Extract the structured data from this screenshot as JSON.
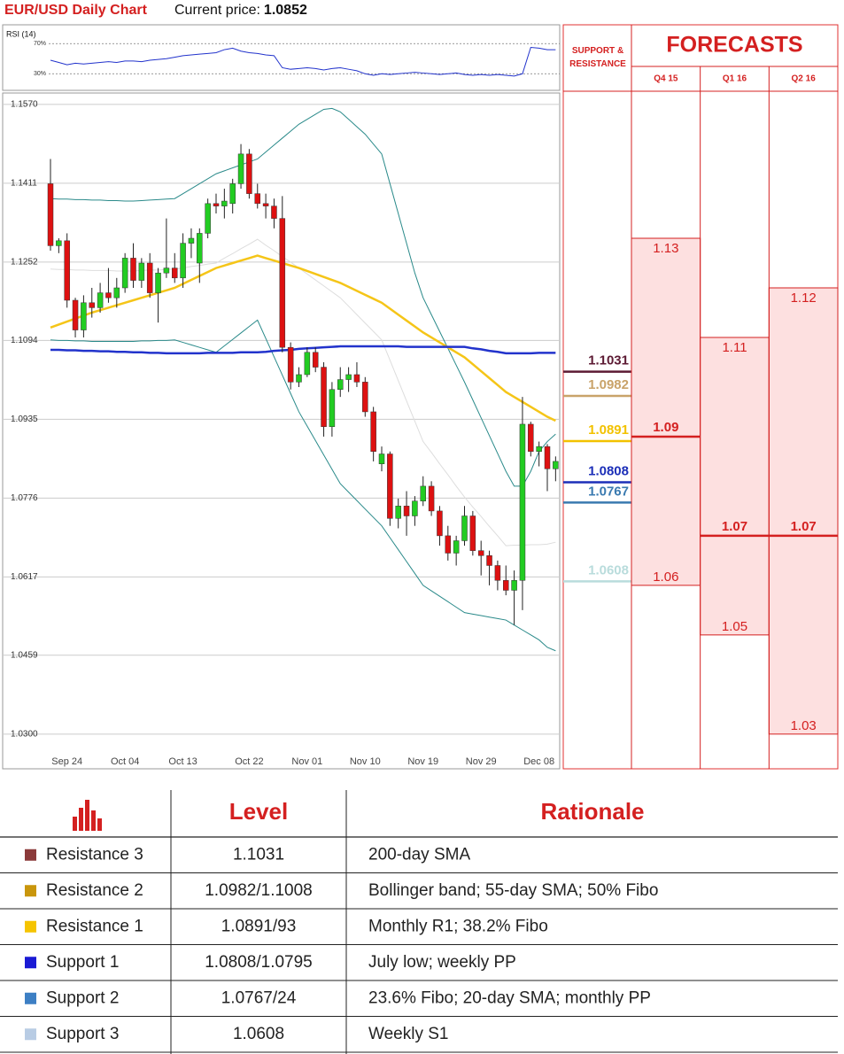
{
  "header": {
    "title": "EUR/USD Daily Chart",
    "price_label": "Current price:",
    "price": "1.0852"
  },
  "chart_data": [
    {
      "type": "line",
      "title": "RSI (14)",
      "color": "#2233cc",
      "values": [
        48,
        45,
        42,
        44,
        43,
        44,
        45,
        46,
        45,
        47,
        47,
        46,
        48,
        49,
        50,
        52,
        54,
        55,
        56,
        57,
        58,
        62,
        64,
        60,
        58,
        57,
        55,
        54,
        38,
        36,
        37,
        38,
        37,
        35,
        37,
        38,
        36,
        34,
        30,
        28,
        30,
        29,
        30,
        31,
        32,
        31,
        30,
        29,
        30,
        31,
        29,
        28,
        29,
        28,
        29,
        28,
        27,
        30,
        65,
        64,
        62,
        62
      ],
      "ylim": [
        8,
        95
      ],
      "yticks": [
        {
          "value": 70,
          "label": "70%"
        },
        {
          "value": 30,
          "label": "30%"
        }
      ]
    },
    {
      "type": "candlestick",
      "grid": true,
      "categories": [
        null,
        null,
        "Sep 24",
        null,
        null,
        null,
        null,
        null,
        null,
        "Oct 04",
        null,
        null,
        null,
        null,
        null,
        null,
        "Oct 13",
        null,
        null,
        null,
        null,
        null,
        null,
        null,
        "Oct 22",
        null,
        null,
        null,
        null,
        null,
        null,
        "Nov 01",
        null,
        null,
        null,
        null,
        null,
        null,
        "Nov 10",
        null,
        null,
        null,
        null,
        null,
        null,
        "Nov 19",
        null,
        null,
        null,
        null,
        null,
        null,
        "Nov 29",
        null,
        null,
        null,
        null,
        null,
        null,
        "Dec 08",
        null,
        null
      ],
      "open": [
        1.141,
        1.1285,
        1.1295,
        1.1175,
        1.1115,
        1.117,
        1.116,
        1.119,
        1.118,
        1.12,
        1.126,
        1.1215,
        1.125,
        1.119,
        1.123,
        1.124,
        1.122,
        1.129,
        1.125,
        1.131,
        1.137,
        1.1365,
        1.137,
        1.141,
        1.147,
        1.139,
        1.137,
        1.1365,
        1.134,
        1.108,
        1.101,
        1.1025,
        1.107,
        1.104,
        1.092,
        1.0995,
        1.1015,
        1.1025,
        1.101,
        1.095,
        1.0845,
        1.0865,
        1.0735,
        1.076,
        1.074,
        1.077,
        1.08,
        1.075,
        1.07,
        1.0665,
        1.069,
        1.074,
        1.067,
        1.066,
        1.064,
        1.061,
        1.059,
        1.061,
        1.0925,
        1.087,
        1.088,
        1.0835
      ],
      "high": [
        1.146,
        1.13,
        1.131,
        1.118,
        1.1185,
        1.12,
        1.121,
        1.124,
        1.122,
        1.127,
        1.129,
        1.126,
        1.127,
        1.124,
        1.134,
        1.127,
        1.131,
        1.132,
        1.132,
        1.138,
        1.139,
        1.14,
        1.142,
        1.149,
        1.148,
        1.141,
        1.139,
        1.138,
        1.1385,
        1.109,
        1.104,
        1.108,
        1.108,
        1.105,
        1.101,
        1.104,
        1.104,
        1.105,
        1.102,
        1.096,
        1.088,
        1.087,
        1.0775,
        1.079,
        1.078,
        1.082,
        1.081,
        1.076,
        1.072,
        1.07,
        1.076,
        1.075,
        1.069,
        1.067,
        1.065,
        1.064,
        1.063,
        1.098,
        1.093,
        1.089,
        1.0885,
        1.086
      ],
      "low": [
        1.1275,
        1.127,
        1.116,
        1.11,
        1.11,
        1.114,
        1.115,
        1.117,
        1.116,
        1.119,
        1.12,
        1.12,
        1.118,
        1.113,
        1.122,
        1.121,
        1.12,
        1.126,
        1.121,
        1.13,
        1.135,
        1.134,
        1.135,
        1.14,
        1.138,
        1.136,
        1.134,
        1.132,
        1.107,
        1.0995,
        1.1,
        1.102,
        1.103,
        1.09,
        1.09,
        1.098,
        1.099,
        1.1,
        1.094,
        1.085,
        1.083,
        1.072,
        1.0715,
        1.07,
        1.072,
        1.076,
        1.074,
        1.068,
        1.065,
        1.064,
        1.068,
        1.066,
        1.062,
        1.06,
        1.059,
        1.058,
        1.052,
        1.055,
        1.086,
        1.084,
        1.079,
        1.081
      ],
      "close": [
        1.1285,
        1.1295,
        1.1175,
        1.1115,
        1.117,
        1.116,
        1.119,
        1.118,
        1.12,
        1.126,
        1.1215,
        1.125,
        1.119,
        1.123,
        1.124,
        1.122,
        1.129,
        1.13,
        1.131,
        1.137,
        1.1365,
        1.1375,
        1.141,
        1.147,
        1.139,
        1.137,
        1.1365,
        1.134,
        1.108,
        1.101,
        1.1025,
        1.107,
        1.104,
        1.092,
        1.0995,
        1.1015,
        1.1025,
        1.101,
        1.095,
        1.087,
        1.0865,
        1.0735,
        1.076,
        1.074,
        1.077,
        1.08,
        1.075,
        1.07,
        1.0665,
        1.069,
        1.074,
        1.067,
        1.066,
        1.064,
        1.061,
        1.059,
        1.061,
        1.0925,
        1.087,
        1.088,
        1.0835,
        1.085
      ],
      "up_color": "#22cc22",
      "down_color": "#dd1111",
      "series": [
        {
          "color": "#dddddd",
          "width": 1,
          "values": [
            1.1238,
            1.1237,
            1.1237,
            1.1236,
            1.1236,
            1.1235,
            1.1235,
            1.1235,
            1.1234,
            1.1234,
            1.1234,
            1.1235,
            1.1236,
            1.1236,
            1.1237,
            1.1238,
            1.124,
            1.1243,
            1.1245,
            1.1248,
            1.125,
            1.126,
            1.1269,
            1.1279,
            1.1288,
            1.1298,
            1.1286,
            1.1275,
            1.1263,
            1.1252,
            1.124,
            1.1228,
            1.1216,
            1.1204,
            1.1192,
            1.118,
            1.1163,
            1.1146,
            1.1129,
            1.1112,
            1.1095,
            1.1054,
            1.1013,
            1.0972,
            1.0931,
            1.089,
            1.0868,
            1.0845,
            1.0823,
            1.08,
            1.0778,
            1.0758,
            1.0739,
            1.0719,
            1.07,
            1.068,
            1.0681,
            1.0681,
            1.0682,
            1.0682,
            1.0683,
            1.0687
          ]
        },
        {
          "color": "#2a8a8a",
          "width": 1,
          "values": [
            1.138,
            1.1379,
            1.1379,
            1.1378,
            1.1378,
            1.1377,
            1.1377,
            1.1376,
            1.1376,
            1.1375,
            1.1375,
            1.1376,
            1.1377,
            1.1378,
            1.1379,
            1.138,
            1.139,
            1.14,
            1.141,
            1.142,
            1.143,
            1.1436,
            1.1442,
            1.1448,
            1.1454,
            1.146,
            1.1474,
            1.1488,
            1.1502,
            1.1516,
            1.153,
            1.154,
            1.155,
            1.156,
            1.1562,
            1.1555,
            1.154,
            1.1525,
            1.151,
            1.149,
            1.147,
            1.141,
            1.135,
            1.129,
            1.123,
            1.118,
            1.1146,
            1.1112,
            1.1078,
            1.1044,
            1.101,
            1.0974,
            1.0938,
            1.0902,
            1.0866,
            1.083,
            1.08,
            1.08,
            1.083,
            1.087,
            1.089,
            1.0905
          ]
        },
        {
          "color": "#2a8a8a",
          "width": 1,
          "values": [
            1.1095,
            1.1094,
            1.1094,
            1.1093,
            1.1093,
            1.1092,
            1.1092,
            1.1092,
            1.1092,
            1.1092,
            1.1092,
            1.1093,
            1.1093,
            1.1094,
            1.1094,
            1.1095,
            1.109,
            1.1085,
            1.108,
            1.1075,
            1.107,
            1.1083,
            1.1096,
            1.1109,
            1.1122,
            1.1135,
            1.1098,
            1.1061,
            1.1024,
            1.0987,
            1.095,
            1.0921,
            1.0892,
            1.0863,
            1.0834,
            1.0805,
            1.0788,
            1.0771,
            1.0754,
            1.0737,
            1.072,
            1.0696,
            1.0672,
            1.0648,
            1.0624,
            1.06,
            1.0589,
            1.0578,
            1.0567,
            1.0556,
            1.0545,
            1.0542,
            1.0539,
            1.0536,
            1.0533,
            1.053,
            1.052,
            1.051,
            1.05,
            1.049,
            1.0475,
            1.0468
          ]
        },
        {
          "color": "#f5c518",
          "width": 2.5,
          "values": [
            1.112,
            1.1126,
            1.1132,
            1.1138,
            1.1144,
            1.115,
            1.1155,
            1.116,
            1.1165,
            1.117,
            1.1175,
            1.118,
            1.1185,
            1.119,
            1.1195,
            1.12,
            1.1208,
            1.1216,
            1.1224,
            1.1232,
            1.124,
            1.1245,
            1.125,
            1.1255,
            1.126,
            1.1265,
            1.126,
            1.1255,
            1.125,
            1.1245,
            1.124,
            1.1234,
            1.1228,
            1.1222,
            1.1216,
            1.121,
            1.1202,
            1.1194,
            1.1186,
            1.1178,
            1.117,
            1.1158,
            1.1146,
            1.1134,
            1.1122,
            1.111,
            1.11,
            1.109,
            1.108,
            1.107,
            1.106,
            1.1046,
            1.1032,
            1.1018,
            1.1004,
            1.099,
            1.098,
            1.097,
            1.096,
            1.095,
            1.094,
            1.0932
          ]
        },
        {
          "color": "#2233cc",
          "width": 2.5,
          "values": [
            1.1075,
            1.1075,
            1.1074,
            1.1074,
            1.1073,
            1.1073,
            1.1072,
            1.1072,
            1.1071,
            1.1071,
            1.107,
            1.107,
            1.1069,
            1.1069,
            1.1068,
            1.1068,
            1.1068,
            1.1068,
            1.1068,
            1.1069,
            1.1069,
            1.1069,
            1.1069,
            1.107,
            1.107,
            1.107,
            1.1071,
            1.1073,
            1.1074,
            1.1075,
            1.1077,
            1.1078,
            1.1079,
            1.108,
            1.1081,
            1.1082,
            1.1082,
            1.1082,
            1.1082,
            1.1082,
            1.1082,
            1.1082,
            1.1082,
            1.1081,
            1.1081,
            1.1081,
            1.1081,
            1.1081,
            1.1081,
            1.1081,
            1.1081,
            1.1078,
            1.1076,
            1.1073,
            1.1071,
            1.1068,
            1.1068,
            1.1068,
            1.1068,
            1.1069,
            1.1069,
            1.1069
          ]
        }
      ],
      "ylim": [
        1.023,
        1.1593
      ],
      "yticks": [
        {
          "value": 1.157,
          "label": "1.1570"
        },
        1.1411,
        1.1252,
        1.1094,
        1.0935,
        1.0776,
        1.0617,
        1.0459,
        {
          "value": 1.03,
          "label": "1.0300"
        }
      ],
      "support_resistance": {
        "title": "SUPPORT & RESISTANCE",
        "levels": [
          {
            "value": 1.1031,
            "color": "#5c1a33"
          },
          {
            "value": 1.0982,
            "color": "#c9a36a"
          },
          {
            "value": 1.0891,
            "color": "#f2c200"
          },
          {
            "value": 1.0808,
            "color": "#1c2fb8"
          },
          {
            "value": 1.0767,
            "color": "#3a7ab0"
          },
          {
            "value": 1.0608,
            "color": "#b9dcdc"
          }
        ]
      },
      "forecasts": {
        "title": "FORECASTS",
        "periods": [
          {
            "label": "Q4 15",
            "high": 1.13,
            "mid": 1.09,
            "low": 1.06
          },
          {
            "label": "Q1 16",
            "high": 1.11,
            "mid": 1.07,
            "low": 1.05
          },
          {
            "label": "Q2 16",
            "high": 1.12,
            "mid": 1.07,
            "low": 1.03
          }
        ]
      }
    }
  ],
  "table": {
    "header": [
      "Level",
      "Rationale"
    ],
    "rows": [
      {
        "name": "Resistance 3",
        "color": "#8b3a3a",
        "level": "1.1031",
        "rationale": "200-day SMA"
      },
      {
        "name": "Resistance 2",
        "color": "#c9960c",
        "level": "1.0982/1.1008",
        "rationale": "Bollinger band; 55-day SMA; 50% Fibo"
      },
      {
        "name": "Resistance 1",
        "color": "#f5c400",
        "level": "1.0891/93",
        "rationale": "Monthly R1; 38.2% Fibo"
      },
      {
        "name": "Support 1",
        "color": "#1a1ad4",
        "level": "1.0808/1.0795",
        "rationale": "July low; weekly PP"
      },
      {
        "name": "Support 2",
        "color": "#3d7fc4",
        "level": "1.0767/24",
        "rationale": "23.6% Fibo; 20-day SMA; monthly PP"
      },
      {
        "name": "Support 3",
        "color": "#b8cce4",
        "level": "1.0608",
        "rationale": "Weekly S1"
      }
    ]
  }
}
